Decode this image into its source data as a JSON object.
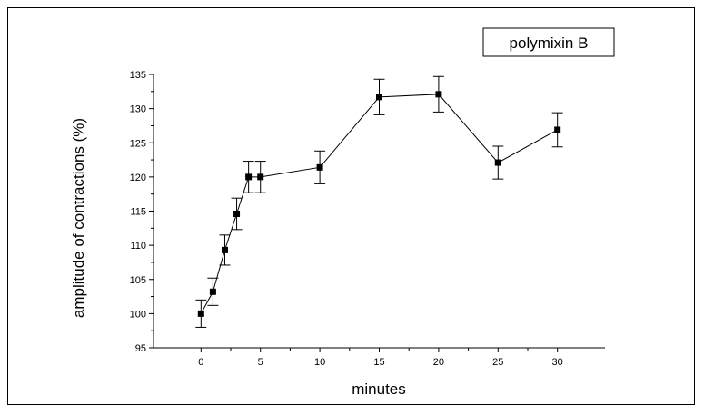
{
  "chart_data": {
    "type": "line",
    "title": "",
    "xlabel": "minutes",
    "ylabel": "amplitude of contractions  (%)",
    "xlim": [
      -4,
      34
    ],
    "ylim": [
      95,
      135
    ],
    "xticks": [
      0,
      5,
      10,
      15,
      20,
      25,
      30
    ],
    "yticks": [
      95,
      100,
      105,
      110,
      115,
      120,
      125,
      130,
      135
    ],
    "grid": false,
    "legend": {
      "label": "polymixin B",
      "placement": "top-right"
    },
    "series": [
      {
        "name": "polymixin B",
        "color": "#000000",
        "marker": "square",
        "x": [
          0,
          1,
          2,
          3,
          4,
          5,
          10,
          15,
          20,
          25,
          30
        ],
        "y": [
          100.0,
          103.2,
          109.3,
          114.6,
          120.0,
          120.0,
          121.4,
          131.7,
          132.1,
          122.1,
          126.9
        ],
        "error": [
          2.0,
          2.0,
          2.2,
          2.3,
          2.3,
          2.3,
          2.4,
          2.6,
          2.6,
          2.4,
          2.5
        ]
      }
    ]
  }
}
